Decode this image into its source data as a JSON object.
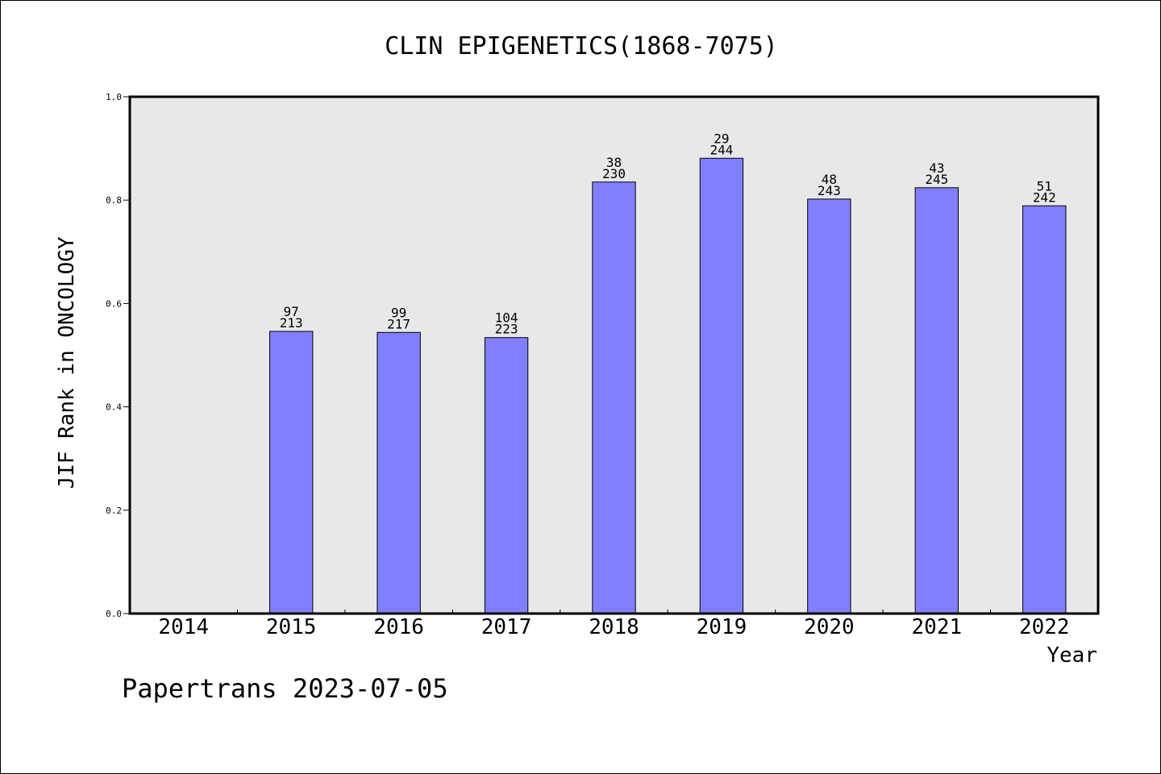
{
  "chart_data": {
    "type": "bar",
    "title": "CLIN EPIGENETICS(1868-7075)",
    "xlabel": "Year",
    "ylabel": "JIF Rank in ONCOLOGY",
    "ylim": [
      0,
      1.0
    ],
    "yticks": [
      "0.0",
      "0.2",
      "0.4",
      "0.6",
      "0.8",
      "1.0"
    ],
    "ytick_values": [
      0,
      0.2,
      0.4,
      0.6,
      0.8,
      1.0
    ],
    "grid": false,
    "categories": [
      "2014",
      "2015",
      "2016",
      "2017",
      "2018",
      "2019",
      "2020",
      "2021",
      "2022"
    ],
    "values": [
      null,
      0.546,
      0.544,
      0.534,
      0.835,
      0.881,
      0.802,
      0.824,
      0.789
    ],
    "rank": [
      null,
      "97",
      "99",
      "104",
      "38",
      "29",
      "48",
      "43",
      "51"
    ],
    "total": [
      null,
      "213",
      "217",
      "223",
      "230",
      "244",
      "243",
      "245",
      "242"
    ],
    "colors": {
      "bar": "#8080ff",
      "plot_bg": "#e8e8e8",
      "axis": "#000000"
    }
  },
  "footer": {
    "text": "Papertrans 2023-07-05"
  }
}
